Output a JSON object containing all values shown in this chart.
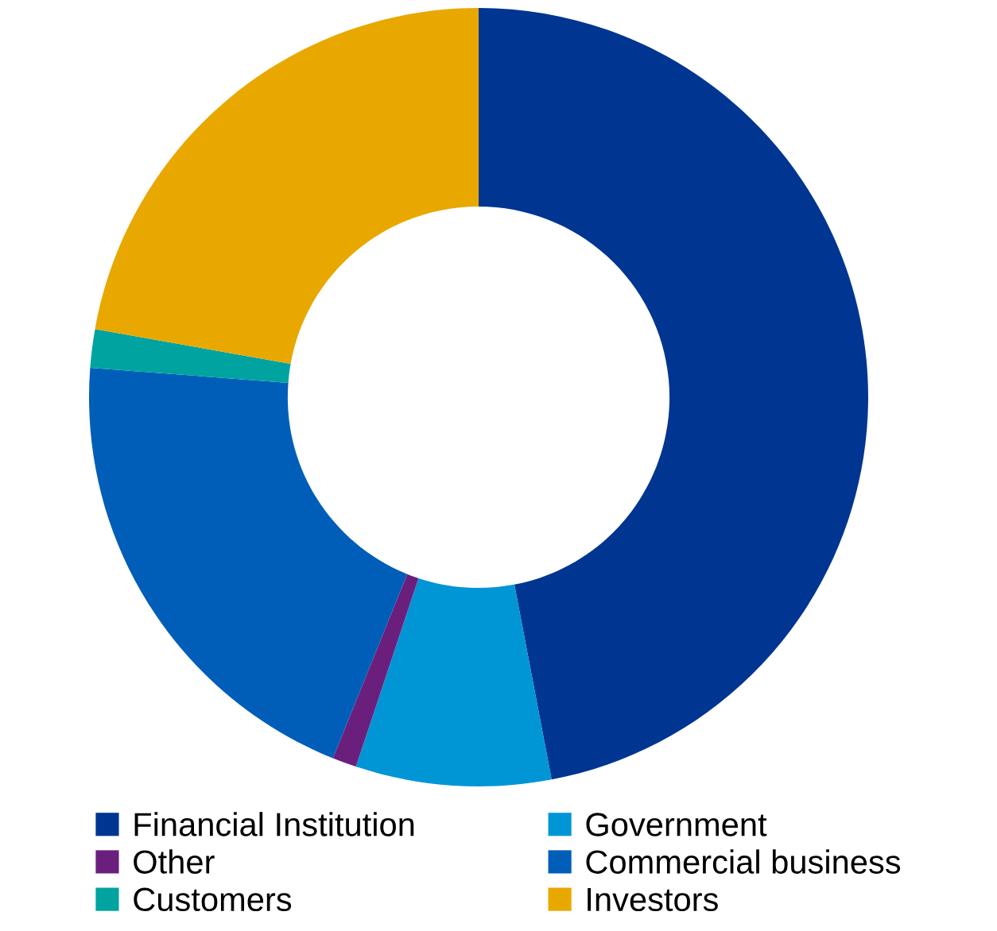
{
  "chart_data": {
    "type": "donut",
    "categories": [
      "Financial Institution",
      "Government",
      "Other",
      "Commercial business",
      "Customers",
      "Investors"
    ],
    "values": [
      47,
      8.1,
      1,
      20.1,
      1.6,
      22.2
    ],
    "colors": [
      "#003591",
      "#0096d6",
      "#6b1f7c",
      "#005eb8",
      "#00a3a0",
      "#e8a800"
    ],
    "legend": "bottom"
  }
}
